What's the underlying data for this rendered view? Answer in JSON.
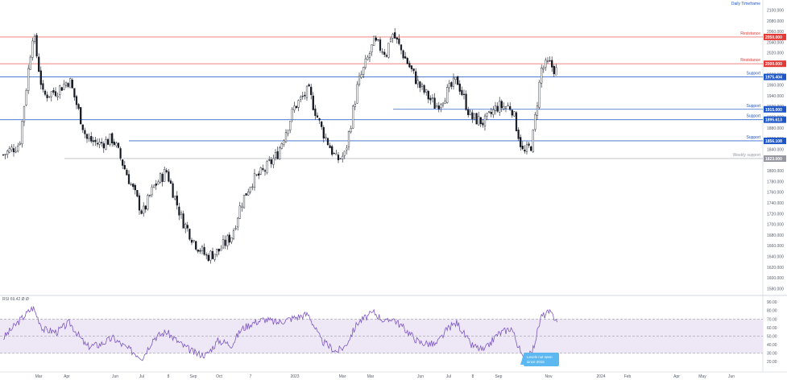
{
  "header": {
    "timeframe_label": "Daily Timeframe",
    "rsi_label": "RSI",
    "rsi_params": "RSI 69.42 Ø Ø"
  },
  "colors": {
    "candle": "#131722",
    "resistance": "#e53935",
    "support": "#1e56c8",
    "weekly_support": "#9598a1",
    "rsi_line": "#7e57c2",
    "rsi_band": "#ede7f6",
    "callout": "#5bb8f0"
  },
  "price_axis": {
    "ticks": [
      "2100.000",
      "2080.000",
      "2060.000",
      "2040.000",
      "2020.000",
      "2000.000",
      "1980.000",
      "1960.000",
      "1940.000",
      "1920.000",
      "1900.000",
      "1880.000",
      "1860.000",
      "1840.000",
      "1820.000",
      "1800.000",
      "1780.000",
      "1760.000",
      "1740.000",
      "1720.000",
      "1700.000",
      "1680.000",
      "1660.000",
      "1640.000",
      "1620.000",
      "1600.000",
      "1580.000"
    ],
    "range": [
      1575,
      2113
    ]
  },
  "rsi_axis": {
    "ticks": [
      "90.00",
      "80.00",
      "70.00",
      "60.00",
      "50.00",
      "40.00",
      "30.00",
      "20.00"
    ],
    "range": [
      10,
      95
    ],
    "overbought": 70,
    "oversold": 30
  },
  "date_axis": {
    "labels": [
      "Mar",
      "Apr",
      "Jun",
      "Jul",
      "8",
      "Sep",
      "Oct",
      "7",
      "2023",
      "Mar",
      "Mar",
      "Jun",
      "Jul",
      "8",
      "Sep",
      "Nov",
      "2024",
      "Feb",
      "Apr",
      "May",
      "Jun"
    ]
  },
  "levels": [
    {
      "kind": "resistance",
      "label": "Resistance",
      "value": "2050.000",
      "price": 2050
    },
    {
      "kind": "resistance",
      "label": "Resistance",
      "value": "2000.000",
      "price": 2000
    },
    {
      "kind": "support",
      "label": "Support",
      "value": "1975.404",
      "price": 1975.4
    },
    {
      "kind": "support",
      "label": "Support",
      "value": "1915.000",
      "price": 1915
    },
    {
      "kind": "support",
      "label": "Support",
      "value": "1895.613",
      "price": 1895.6
    },
    {
      "kind": "support",
      "label": "Support",
      "value": "1856.108",
      "price": 1856.1
    },
    {
      "kind": "weekly",
      "label": "Weekly support",
      "value": "1823.000",
      "price": 1823
    }
  ],
  "annotation": {
    "text_line1": "Levels not seen",
    "text_line2": "since 2016"
  },
  "chart_data": {
    "type": "line",
    "title": "",
    "xlabel": "",
    "ylabel": "",
    "grid": false,
    "series": [
      {
        "name": "",
        "x": [
          "2022-02-01",
          "2022-02-20",
          "2022-03-08",
          "2022-03-20",
          "2022-04-05",
          "2022-04-20",
          "2022-05-10",
          "2022-05-25",
          "2022-06-10",
          "2022-06-25",
          "2022-07-15",
          "2022-07-28",
          "2022-08-12",
          "2022-08-30",
          "2022-09-15",
          "2022-09-28",
          "2022-10-12",
          "2022-10-28",
          "2022-11-08",
          "2022-11-20",
          "2022-12-05",
          "2022-12-20",
          "2023-01-10",
          "2023-01-26",
          "2023-02-10",
          "2023-02-28",
          "2023-03-10",
          "2023-03-25",
          "2023-04-13",
          "2023-04-28",
          "2023-05-04",
          "2023-05-20",
          "2023-06-05",
          "2023-06-25",
          "2023-07-10",
          "2023-07-20",
          "2023-08-05",
          "2023-08-21",
          "2023-09-05",
          "2023-09-22",
          "2023-10-06",
          "2023-10-16",
          "2023-10-27",
          "2023-11-05",
          "2023-11-15"
        ],
        "values": [
          1830,
          1850,
          2060,
          1940,
          1950,
          1970,
          1860,
          1850,
          1860,
          1800,
          1720,
          1770,
          1800,
          1710,
          1665,
          1640,
          1650,
          1680,
          1740,
          1780,
          1800,
          1830,
          1920,
          1950,
          1880,
          1820,
          1830,
          1960,
          2040,
          2020,
          2060,
          2010,
          1960,
          1920,
          1950,
          1970,
          1900,
          1890,
          1920,
          1920,
          1830,
          1850,
          1990,
          2000,
          1985
        ]
      },
      {
        "name": "RSI",
        "x": [
          "2022-02-01",
          "2022-02-20",
          "2022-03-08",
          "2022-03-20",
          "2022-04-05",
          "2022-04-20",
          "2022-05-10",
          "2022-05-25",
          "2022-06-10",
          "2022-06-25",
          "2022-07-15",
          "2022-07-28",
          "2022-08-12",
          "2022-08-30",
          "2022-09-15",
          "2022-09-28",
          "2022-10-12",
          "2022-10-28",
          "2022-11-08",
          "2022-11-20",
          "2022-12-05",
          "2022-12-20",
          "2023-01-10",
          "2023-01-26",
          "2023-02-10",
          "2023-02-28",
          "2023-03-10",
          "2023-03-25",
          "2023-04-13",
          "2023-04-28",
          "2023-05-04",
          "2023-05-20",
          "2023-06-05",
          "2023-06-25",
          "2023-07-10",
          "2023-07-20",
          "2023-08-05",
          "2023-08-21",
          "2023-09-05",
          "2023-09-22",
          "2023-10-06",
          "2023-10-16",
          "2023-10-27",
          "2023-11-05",
          "2023-11-15"
        ],
        "values": [
          48,
          68,
          84,
          58,
          55,
          66,
          38,
          40,
          48,
          37,
          25,
          48,
          55,
          40,
          30,
          28,
          45,
          40,
          58,
          65,
          70,
          66,
          72,
          76,
          45,
          32,
          38,
          66,
          78,
          66,
          72,
          58,
          43,
          40,
          60,
          66,
          40,
          33,
          52,
          60,
          22,
          30,
          73,
          78,
          69
        ]
      }
    ]
  }
}
